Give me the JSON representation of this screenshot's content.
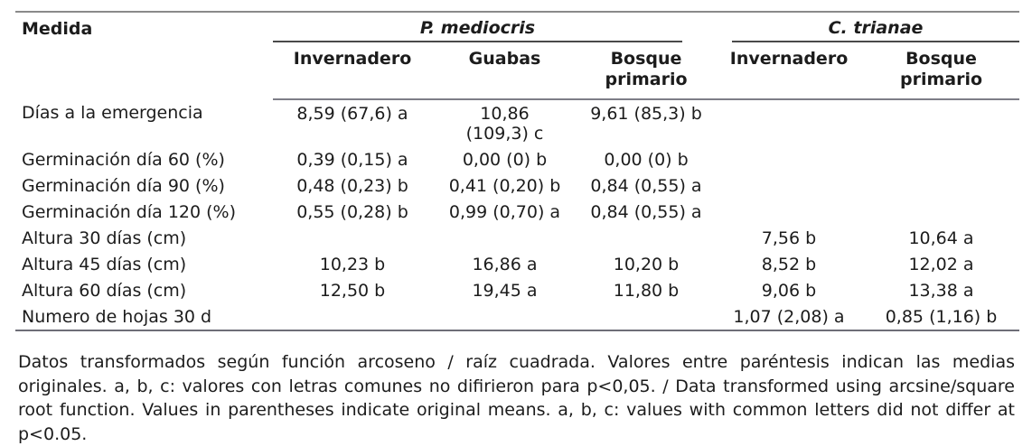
{
  "table": {
    "col_header": "Medida",
    "groups": [
      {
        "label": "P. mediocris",
        "columns": [
          "Invernadero",
          "Guabas",
          "Bosque primario"
        ]
      },
      {
        "label": "C. trianae",
        "columns": [
          "Invernadero",
          "Bosque primario"
        ]
      }
    ],
    "rows": [
      {
        "label": "Días a la emergencia",
        "values": [
          "8,59 (67,6) a",
          "10,86\n(109,3) c",
          "9,61 (85,3) b",
          "",
          ""
        ]
      },
      {
        "label": "Germinación día 60 (%)",
        "values": [
          "0,39 (0,15) a",
          "0,00 (0) b",
          "0,00 (0) b",
          "",
          ""
        ]
      },
      {
        "label": "Germinación día 90 (%)",
        "values": [
          "0,48 (0,23) b",
          "0,41 (0,20) b",
          "0,84 (0,55) a",
          "",
          ""
        ]
      },
      {
        "label": "Germinación día 120 (%)",
        "values": [
          "0,55 (0,28) b",
          "0,99 (0,70) a",
          "0,84 (0,55) a",
          "",
          ""
        ]
      },
      {
        "label": "Altura 30 días (cm)",
        "values": [
          "",
          "",
          "",
          "7,56 b",
          "10,64 a"
        ]
      },
      {
        "label": "Altura 45 días (cm)",
        "values": [
          "10,23 b",
          "16,86 a",
          "10,20 b",
          "8,52 b",
          "12,02 a"
        ]
      },
      {
        "label": "Altura 60 días (cm)",
        "values": [
          "12,50 b",
          "19,45 a",
          "11,80 b",
          "9,06 b",
          "13,38 a"
        ]
      },
      {
        "label": "Numero de hojas 30 d",
        "values": [
          "",
          "",
          "",
          "1,07 (2,08) a",
          "0,85 (1,16) b"
        ]
      }
    ],
    "footnote": "Datos transformados según función arcoseno / raíz cuadrada. Valores entre paréntesis indican las medias originales. a, b, c: valores con letras comunes no difirieron para p<0,05. / Data transformed using arcsine/square root function. Values in parentheses indicate original means. a, b, c: values with common letters did not differ at p<0.05."
  }
}
